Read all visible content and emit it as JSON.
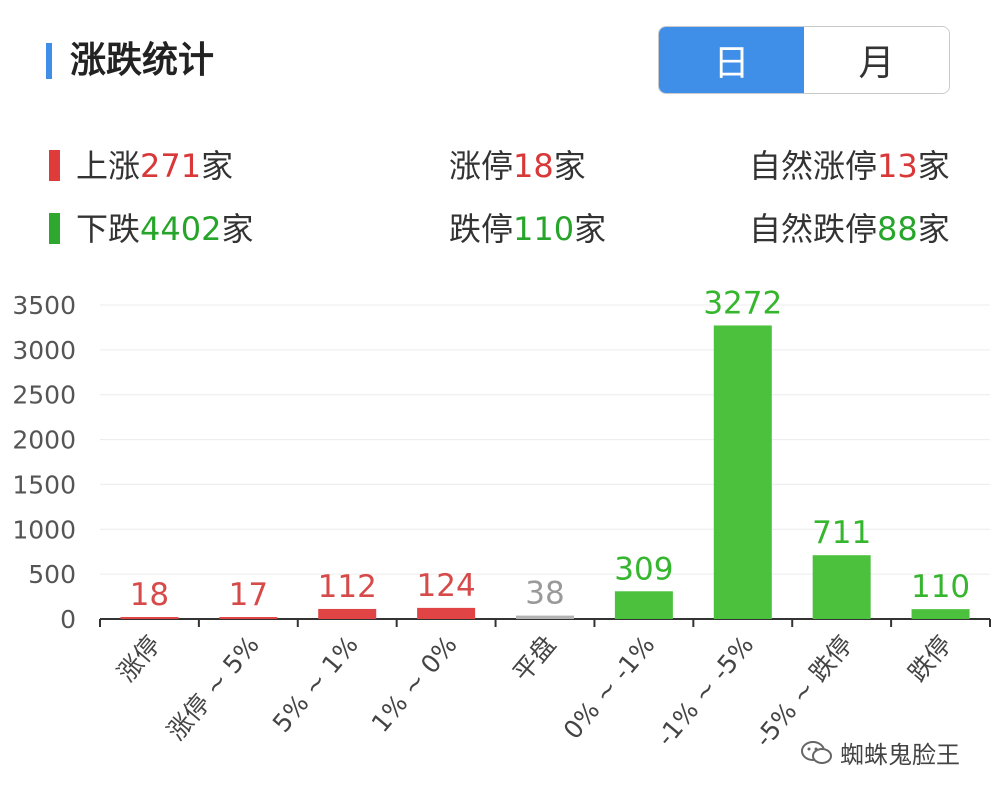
{
  "header": {
    "title": "涨跌统计",
    "tabs": [
      {
        "label": "日",
        "active": true
      },
      {
        "label": "月",
        "active": false
      }
    ]
  },
  "stats": {
    "up": {
      "prefix": "上涨",
      "value": "271",
      "suffix": "家"
    },
    "down": {
      "prefix": "下跌",
      "value": "4402",
      "suffix": "家"
    },
    "limit_up": {
      "prefix": "涨停",
      "value": "18",
      "suffix": "家"
    },
    "limit_down": {
      "prefix": "跌停",
      "value": "110",
      "suffix": "家"
    },
    "natural_limit_up": {
      "prefix": "自然涨停",
      "value": "13",
      "suffix": "家"
    },
    "natural_limit_down": {
      "prefix": "自然跌停",
      "value": "88",
      "suffix": "家"
    }
  },
  "colors": {
    "accent": "#3f8ee8",
    "up": "#e04444",
    "up_label": "#d64a4a",
    "down": "#4cc13e",
    "down_label": "#36b52f",
    "flat": "#b3b3b3",
    "flat_label": "#9a9a9a"
  },
  "chart_data": {
    "type": "bar",
    "title": "",
    "xlabel": "",
    "ylabel": "",
    "ylim": [
      0,
      3500
    ],
    "yticks": [
      0,
      500,
      1000,
      1500,
      2000,
      2500,
      3000,
      3500
    ],
    "grid": true,
    "categories": [
      "涨停",
      "涨停 ~ 5%",
      "5% ~ 1%",
      "1% ~ 0%",
      "平盘",
      "0% ~ -1%",
      "-1% ~ -5%",
      "-5% ~ 跌停",
      "跌停"
    ],
    "values": [
      18,
      17,
      112,
      124,
      38,
      309,
      3272,
      711,
      110
    ],
    "bar_colors": [
      "up",
      "up",
      "up",
      "up",
      "flat",
      "down",
      "down",
      "down",
      "down"
    ]
  },
  "watermark": {
    "text": "蜘蛛鬼脸王",
    "icon": "wechat-icon"
  }
}
